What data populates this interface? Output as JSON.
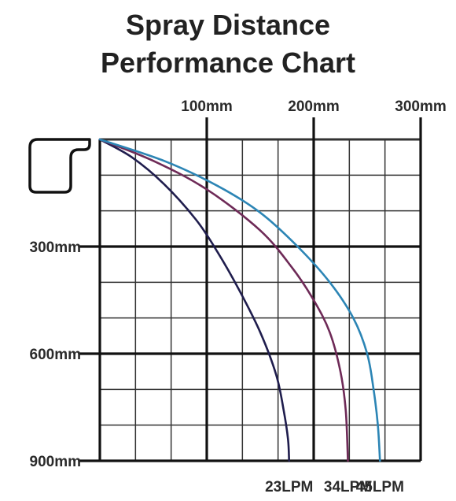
{
  "title": {
    "line1": "Spray Distance",
    "line2": "Performance Chart"
  },
  "chart_data": {
    "type": "line",
    "x_tick_labels": [
      "100mm",
      "200mm",
      "300mm"
    ],
    "y_tick_labels": [
      "300mm",
      "600mm",
      "900mm"
    ],
    "xlim": [
      0,
      300
    ],
    "ylim": [
      0,
      900
    ],
    "x_unit": "mm",
    "y_unit": "mm",
    "grid": true,
    "series": [
      {
        "name": "23LPM",
        "color": "#1f1d4d",
        "x": [
          0,
          30,
          60,
          90,
          110,
          130,
          150,
          165,
          172,
          176,
          177
        ],
        "y": [
          0,
          50,
          125,
          225,
          315,
          420,
          540,
          660,
          760,
          840,
          900
        ]
      },
      {
        "name": "34LPM",
        "color": "#6e2a57",
        "x": [
          0,
          50,
          100,
          150,
          180,
          200,
          215,
          225,
          230,
          232
        ],
        "y": [
          0,
          60,
          140,
          255,
          360,
          450,
          540,
          650,
          760,
          900
        ]
      },
      {
        "name": "45LPM",
        "color": "#2c85b5",
        "x": [
          0,
          60,
          110,
          150,
          185,
          215,
          237,
          250,
          256,
          260,
          262
        ],
        "y": [
          0,
          60,
          130,
          205,
          300,
          400,
          500,
          600,
          700,
          800,
          900
        ]
      }
    ]
  },
  "icons": {
    "nozzle": "spray-nozzle-icon"
  },
  "colors": {
    "axis": "#111111",
    "grid": "#333333",
    "text": "#222222"
  }
}
